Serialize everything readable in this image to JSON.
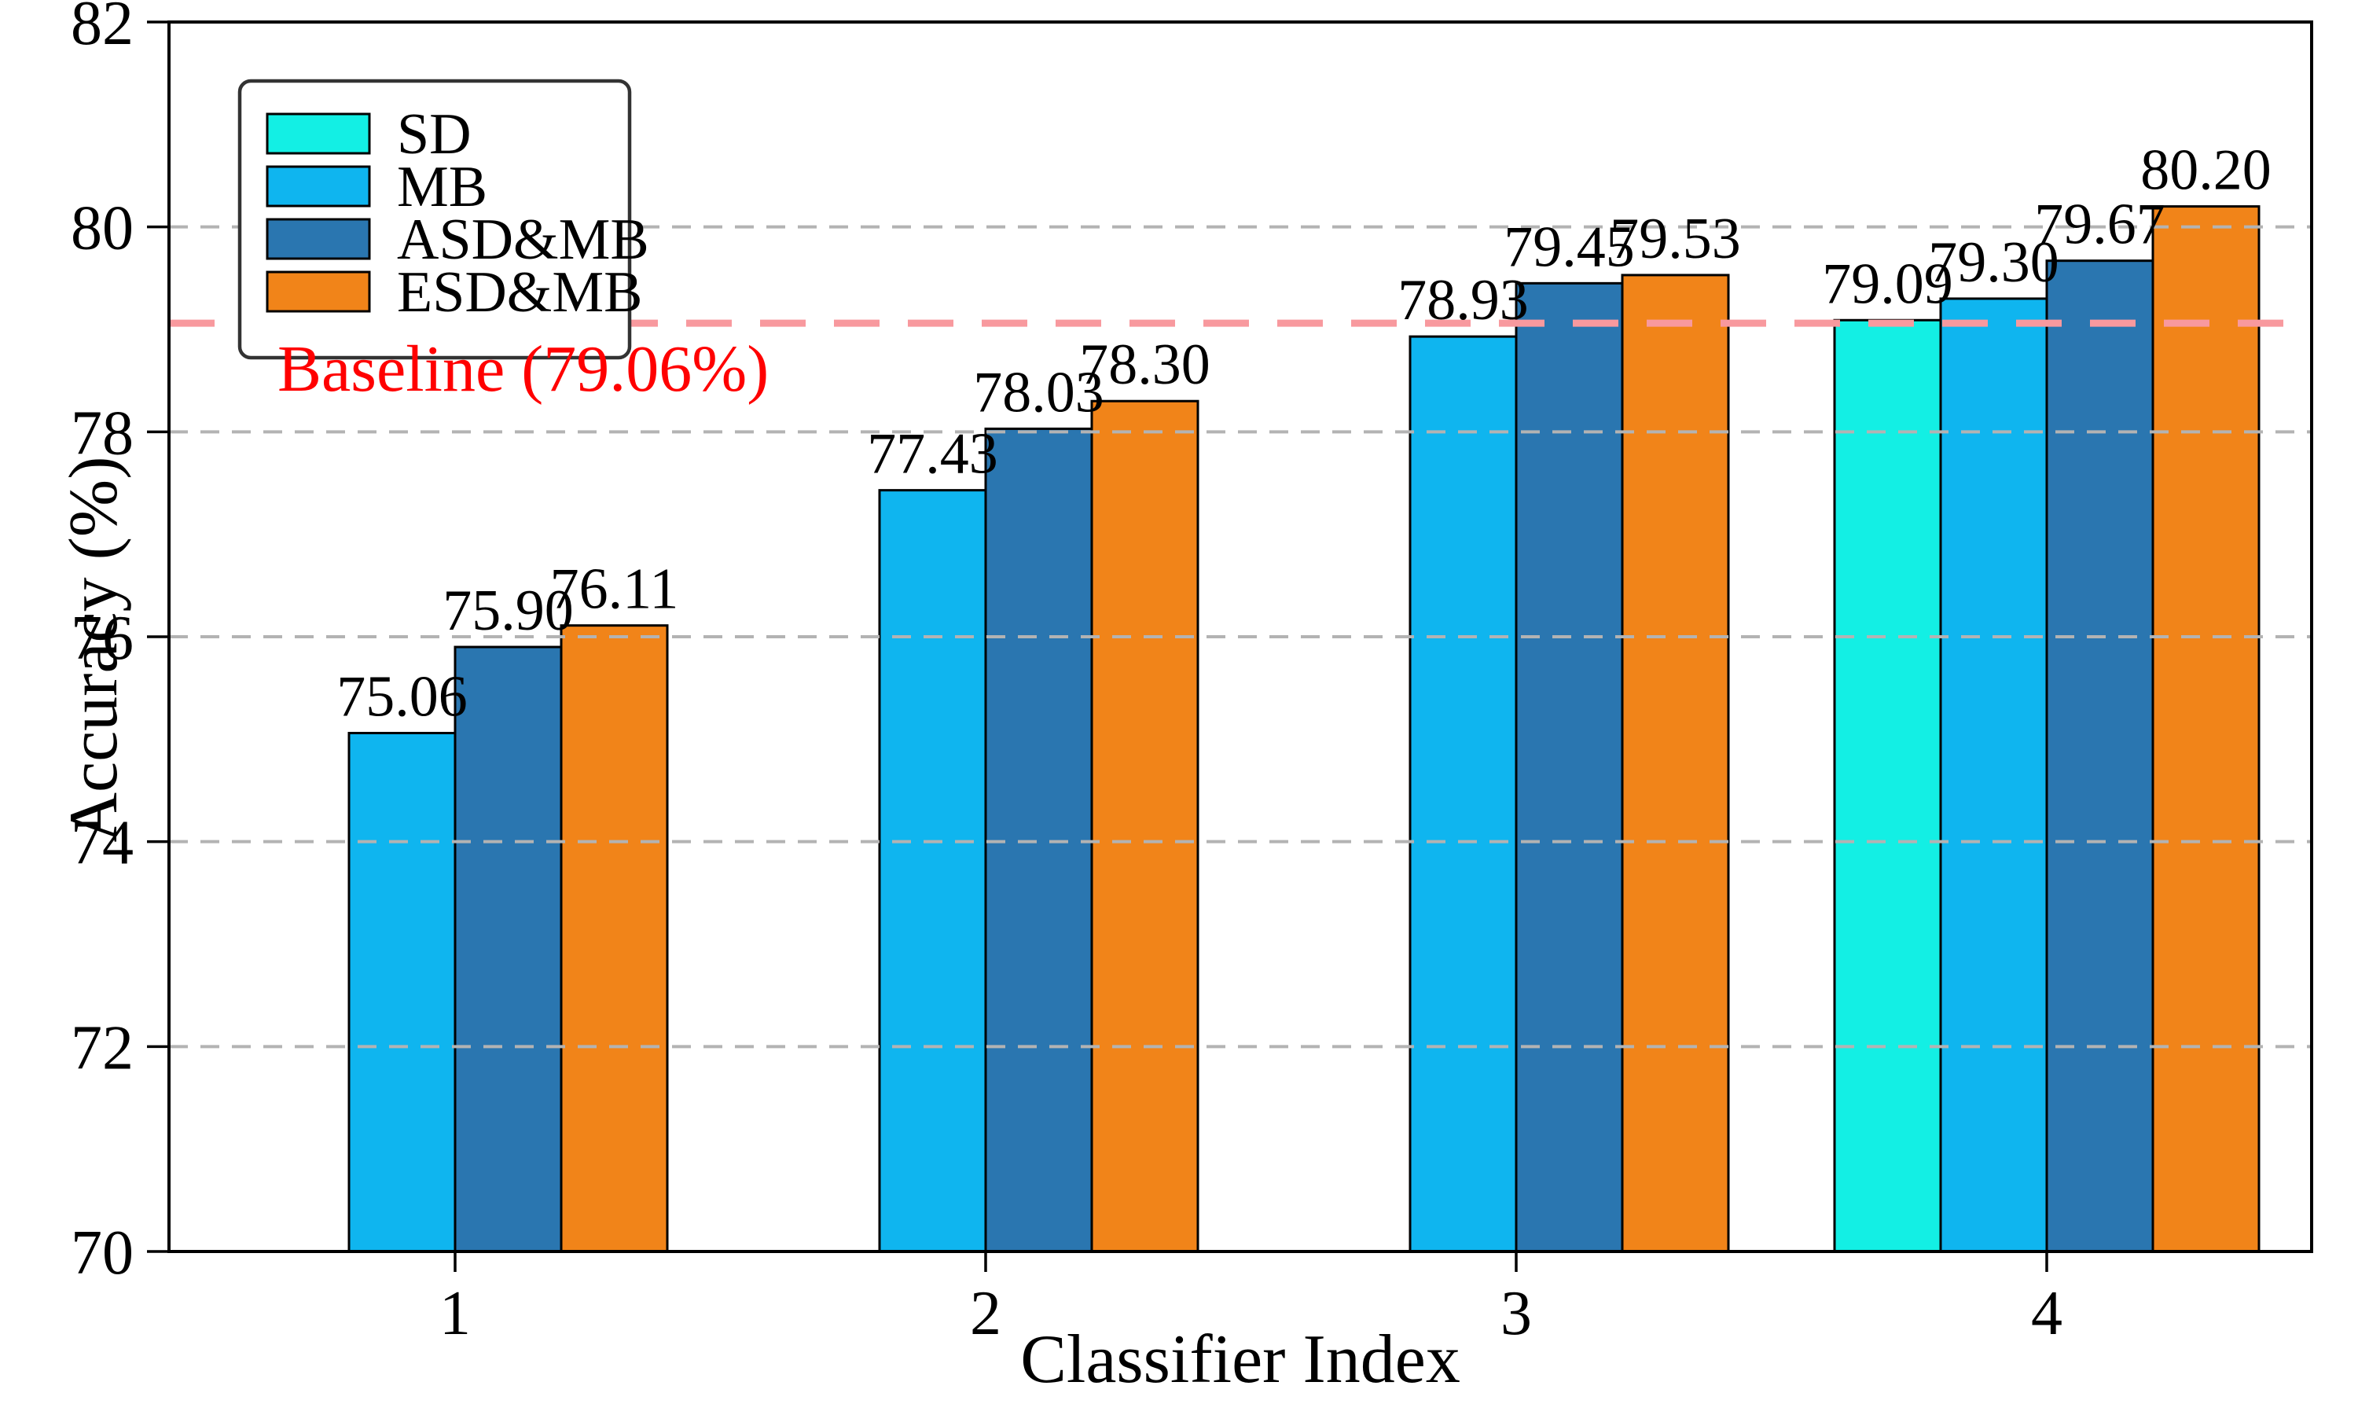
{
  "chart_data": {
    "type": "bar",
    "title": "",
    "xlabel": "Classifier Index",
    "ylabel": "Accuracy (%)",
    "categories": [
      "1",
      "2",
      "3",
      "4"
    ],
    "x_tick_labels": [
      "1",
      "2",
      "3",
      "4"
    ],
    "y_tick_labels": [
      "70",
      "72",
      "74",
      "76",
      "78",
      "80",
      "82"
    ],
    "yticks": [
      70,
      72,
      74,
      76,
      78,
      80,
      82
    ],
    "ylim": [
      70,
      82
    ],
    "grid": {
      "on": true,
      "axis": "y",
      "style": "dashed",
      "color": "#b3b3b3"
    },
    "legend": {
      "position": "upper left",
      "border_color": "#333333",
      "background": "#ffffff"
    },
    "bar_edge_color": "#000000",
    "series": [
      {
        "name": "SD",
        "color": "#13efe4",
        "values": [
          null,
          null,
          null,
          79.09
        ],
        "labels": [
          null,
          null,
          null,
          "79.09"
        ]
      },
      {
        "name": "MB",
        "color": "#0fb5ef",
        "values": [
          75.06,
          77.43,
          78.93,
          79.3
        ],
        "labels": [
          "75.06",
          "77.43",
          "78.93",
          "79.30"
        ]
      },
      {
        "name": "ASD&MB",
        "color": "#2a76b0",
        "values": [
          75.9,
          78.03,
          79.45,
          79.67
        ],
        "labels": [
          "75.90",
          "78.03",
          "79.45",
          "79.67"
        ]
      },
      {
        "name": "ESD&MB",
        "color": "#f18419",
        "values": [
          76.11,
          78.3,
          79.53,
          80.2
        ],
        "labels": [
          "76.11",
          "78.30",
          "79.53",
          "80.20"
        ]
      }
    ],
    "baseline": {
      "value": 79.06,
      "label": "Baseline (79.06%)",
      "line_color": "#f8999e",
      "text_color": "#ff0000"
    }
  }
}
